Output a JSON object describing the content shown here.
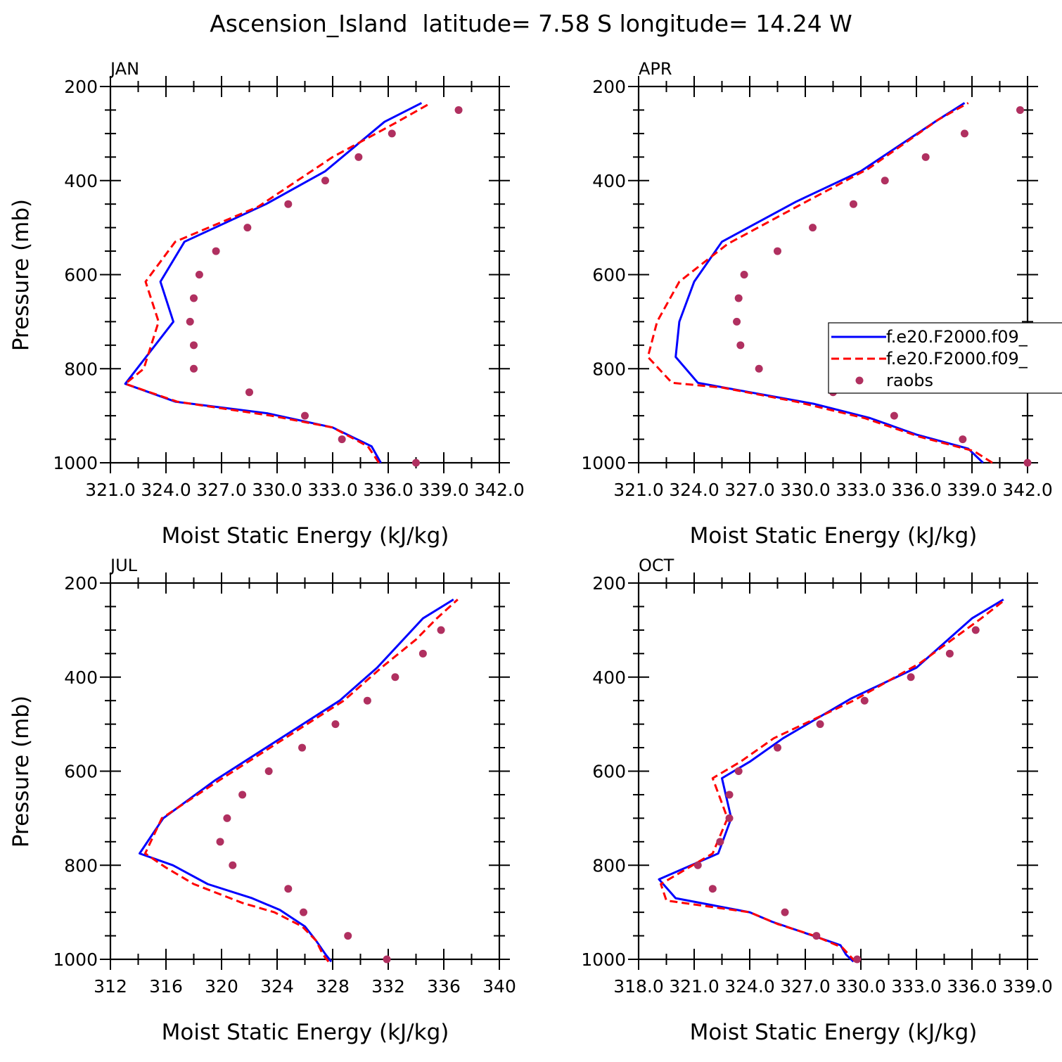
{
  "figure_title": "Ascension_Island  latitude= 7.58 S longitude= 14.24 W",
  "y_axis_label": "Pressure (mb)",
  "x_axis_label": "Moist Static Energy (kJ/kg)",
  "legend": {
    "entries": [
      {
        "label": "f.e20.F2000.f09_",
        "style": "solid",
        "color": "#0000ff"
      },
      {
        "label": "f.e20.F2000.f09_",
        "style": "dashed",
        "color": "#ff0000"
      },
      {
        "label": "raobs",
        "style": "dot",
        "color": "#b03060"
      }
    ]
  },
  "colors": {
    "model_solid": "#0000ff",
    "model_dashed": "#ff0000",
    "obs": "#b03060"
  },
  "chart_data": [
    {
      "type": "line",
      "panel": "JAN",
      "xlabel": "Moist Static Energy (kJ/kg)",
      "ylabel": "Pressure (mb)",
      "xlim": [
        321.0,
        342.0
      ],
      "ylim": [
        1000,
        200
      ],
      "xticks": [
        321.0,
        324.0,
        327.0,
        330.0,
        333.0,
        336.0,
        339.0,
        342.0
      ],
      "xtick_labels": [
        "321.0",
        "324.0",
        "327.0",
        "330.0",
        "333.0",
        "336.0",
        "339.0",
        "342.0"
      ],
      "yticks": [
        200,
        400,
        600,
        800,
        1000
      ],
      "series": [
        {
          "style": "solid",
          "color": "#0000ff",
          "points": [
            [
              335.6,
              1000
            ],
            [
              335.1,
              965
            ],
            [
              333.0,
              925
            ],
            [
              329.5,
              895
            ],
            [
              324.5,
              870
            ],
            [
              321.8,
              832
            ],
            [
              324.4,
              700
            ],
            [
              323.7,
              615
            ],
            [
              325.0,
              530
            ],
            [
              329.4,
              450
            ],
            [
              332.6,
              380
            ],
            [
              335.8,
              275
            ],
            [
              337.8,
              235
            ]
          ]
        },
        {
          "style": "dashed",
          "color": "#ff0000",
          "points": [
            [
              335.5,
              1000
            ],
            [
              334.9,
              965
            ],
            [
              333.0,
              925
            ],
            [
              329.7,
              900
            ],
            [
              324.6,
              870
            ],
            [
              321.8,
              832
            ],
            [
              322.8,
              800
            ],
            [
              323.6,
              700
            ],
            [
              322.9,
              615
            ],
            [
              324.5,
              530
            ],
            [
              329.0,
              455
            ],
            [
              333.0,
              350
            ],
            [
              336.5,
              275
            ],
            [
              338.3,
              235
            ]
          ]
        },
        {
          "style": "dot",
          "color": "#b03060",
          "points": [
            [
              337.5,
              1000
            ],
            [
              333.5,
              950
            ],
            [
              331.5,
              900
            ],
            [
              328.5,
              850
            ],
            [
              325.5,
              800
            ],
            [
              325.5,
              750
            ],
            [
              325.3,
              700
            ],
            [
              325.5,
              650
            ],
            [
              325.8,
              600
            ],
            [
              326.7,
              550
            ],
            [
              328.4,
              500
            ],
            [
              330.6,
              450
            ],
            [
              332.6,
              400
            ],
            [
              334.4,
              350
            ],
            [
              336.2,
              300
            ],
            [
              339.8,
              250
            ]
          ]
        }
      ]
    },
    {
      "type": "line",
      "panel": "APR",
      "xlabel": "Moist Static Energy (kJ/kg)",
      "ylabel": "Pressure (mb)",
      "xlim": [
        321.0,
        342.0
      ],
      "ylim": [
        1000,
        200
      ],
      "xticks": [
        321.0,
        324.0,
        327.0,
        330.0,
        333.0,
        336.0,
        339.0,
        342.0
      ],
      "xtick_labels": [
        "321.0",
        "324.0",
        "327.0",
        "330.0",
        "333.0",
        "336.0",
        "339.0",
        "342.0"
      ],
      "yticks": [
        200,
        400,
        600,
        800,
        1000
      ],
      "series": [
        {
          "style": "solid",
          "color": "#0000ff",
          "points": [
            [
              339.6,
              1000
            ],
            [
              338.8,
              970
            ],
            [
              336.0,
              940
            ],
            [
              333.5,
              905
            ],
            [
              330.5,
              875
            ],
            [
              327.0,
              850
            ],
            [
              324.2,
              830
            ],
            [
              323.0,
              775
            ],
            [
              323.2,
              700
            ],
            [
              324.0,
              615
            ],
            [
              325.5,
              530
            ],
            [
              329.5,
              445
            ],
            [
              333.0,
              380
            ],
            [
              337.0,
              275
            ],
            [
              338.6,
              235
            ]
          ]
        },
        {
          "style": "dashed",
          "color": "#ff0000",
          "points": [
            [
              340.1,
              1000
            ],
            [
              339.1,
              975
            ],
            [
              336.2,
              945
            ],
            [
              333.2,
              905
            ],
            [
              329.5,
              870
            ],
            [
              325.5,
              840
            ],
            [
              322.8,
              830
            ],
            [
              321.5,
              775
            ],
            [
              322.0,
              700
            ],
            [
              323.2,
              615
            ],
            [
              325.8,
              535
            ],
            [
              329.8,
              450
            ],
            [
              333.4,
              375
            ],
            [
              337.2,
              270
            ],
            [
              338.8,
              235
            ]
          ]
        },
        {
          "style": "dot",
          "color": "#b03060",
          "points": [
            [
              342.0,
              1000
            ],
            [
              338.5,
              950
            ],
            [
              334.8,
              900
            ],
            [
              331.5,
              850
            ],
            [
              327.5,
              800
            ],
            [
              326.5,
              750
            ],
            [
              326.3,
              700
            ],
            [
              326.4,
              650
            ],
            [
              326.7,
              600
            ],
            [
              328.5,
              550
            ],
            [
              330.4,
              500
            ],
            [
              332.6,
              450
            ],
            [
              334.3,
              400
            ],
            [
              336.5,
              350
            ],
            [
              338.6,
              300
            ],
            [
              341.6,
              250
            ]
          ]
        }
      ]
    },
    {
      "type": "line",
      "panel": "JUL",
      "xlabel": "Moist Static Energy (kJ/kg)",
      "ylabel": "Pressure (mb)",
      "xlim": [
        312,
        340
      ],
      "ylim": [
        1000,
        200
      ],
      "xticks": [
        312,
        316,
        320,
        324,
        328,
        332,
        336,
        340
      ],
      "xtick_labels": [
        "312",
        "316",
        "320",
        "324",
        "328",
        "332",
        "336",
        "340"
      ],
      "yticks": [
        200,
        400,
        600,
        800,
        1000
      ],
      "series": [
        {
          "style": "solid",
          "color": "#0000ff",
          "points": [
            [
              327.9,
              1005
            ],
            [
              327.5,
              990
            ],
            [
              326.8,
              960
            ],
            [
              326.0,
              930
            ],
            [
              324.2,
              895
            ],
            [
              322.2,
              870
            ],
            [
              319.0,
              840
            ],
            [
              316.5,
              800
            ],
            [
              314.1,
              775
            ],
            [
              315.8,
              700
            ],
            [
              319.5,
              620
            ],
            [
              324.0,
              535
            ],
            [
              328.5,
              450
            ],
            [
              331.2,
              380
            ],
            [
              334.5,
              275
            ],
            [
              336.7,
              235
            ]
          ]
        },
        {
          "style": "dashed",
          "color": "#ff0000",
          "points": [
            [
              327.7,
              1005
            ],
            [
              327.3,
              990
            ],
            [
              326.8,
              960
            ],
            [
              325.8,
              930
            ],
            [
              323.8,
              900
            ],
            [
              321.5,
              880
            ],
            [
              318.0,
              840
            ],
            [
              316.0,
              805
            ],
            [
              314.5,
              775
            ],
            [
              315.7,
              700
            ],
            [
              319.8,
              620
            ],
            [
              324.3,
              535
            ],
            [
              328.8,
              450
            ],
            [
              331.5,
              380
            ],
            [
              334.0,
              320
            ],
            [
              335.5,
              275
            ],
            [
              337.0,
              235
            ]
          ]
        },
        {
          "style": "dot",
          "color": "#b03060",
          "points": [
            [
              331.9,
              1000
            ],
            [
              329.1,
              950
            ],
            [
              325.9,
              900
            ],
            [
              324.8,
              850
            ],
            [
              320.8,
              800
            ],
            [
              319.9,
              750
            ],
            [
              320.4,
              700
            ],
            [
              321.5,
              650
            ],
            [
              323.4,
              600
            ],
            [
              325.8,
              550
            ],
            [
              328.2,
              500
            ],
            [
              330.5,
              450
            ],
            [
              332.5,
              400
            ],
            [
              334.5,
              350
            ],
            [
              335.8,
              300
            ]
          ]
        }
      ]
    },
    {
      "type": "line",
      "panel": "OCT",
      "xlabel": "Moist Static Energy (kJ/kg)",
      "ylabel": "Pressure (mb)",
      "xlim": [
        318.0,
        339.0
      ],
      "ylim": [
        1000,
        200
      ],
      "xticks": [
        318.0,
        321.0,
        324.0,
        327.0,
        330.0,
        333.0,
        336.0,
        339.0
      ],
      "xtick_labels": [
        "318.0",
        "321.0",
        "324.0",
        "327.0",
        "330.0",
        "333.0",
        "336.0",
        "339.0"
      ],
      "yticks": [
        200,
        400,
        600,
        800,
        1000
      ],
      "series": [
        {
          "style": "solid",
          "color": "#0000ff",
          "points": [
            [
              329.6,
              1005
            ],
            [
              329.2,
              990
            ],
            [
              328.9,
              970
            ],
            [
              327.8,
              955
            ],
            [
              325.2,
              920
            ],
            [
              324.0,
              900
            ],
            [
              320.0,
              870
            ],
            [
              319.1,
              830
            ],
            [
              322.3,
              775
            ],
            [
              323.0,
              700
            ],
            [
              322.5,
              615
            ],
            [
              324.0,
              580
            ],
            [
              325.8,
              530
            ],
            [
              329.5,
              445
            ],
            [
              333.0,
              380
            ],
            [
              336.0,
              275
            ],
            [
              337.7,
              235
            ]
          ]
        },
        {
          "style": "dashed",
          "color": "#ff0000",
          "points": [
            [
              329.7,
              1005
            ],
            [
              329.0,
              975
            ],
            [
              327.5,
              950
            ],
            [
              325.5,
              925
            ],
            [
              324.0,
              900
            ],
            [
              319.5,
              875
            ],
            [
              319.2,
              840
            ],
            [
              322.0,
              775
            ],
            [
              322.8,
              700
            ],
            [
              322.0,
              615
            ],
            [
              323.5,
              580
            ],
            [
              325.3,
              530
            ],
            [
              329.6,
              450
            ],
            [
              333.2,
              370
            ],
            [
              336.5,
              275
            ],
            [
              337.8,
              235
            ]
          ]
        },
        {
          "style": "dot",
          "color": "#b03060",
          "points": [
            [
              329.8,
              1000
            ],
            [
              327.6,
              950
            ],
            [
              325.9,
              900
            ],
            [
              322.0,
              850
            ],
            [
              321.2,
              800
            ],
            [
              322.4,
              750
            ],
            [
              322.9,
              700
            ],
            [
              322.9,
              650
            ],
            [
              323.4,
              600
            ],
            [
              325.5,
              550
            ],
            [
              327.8,
              500
            ],
            [
              330.2,
              450
            ],
            [
              332.7,
              400
            ],
            [
              334.8,
              350
            ],
            [
              336.2,
              300
            ]
          ]
        }
      ]
    }
  ]
}
